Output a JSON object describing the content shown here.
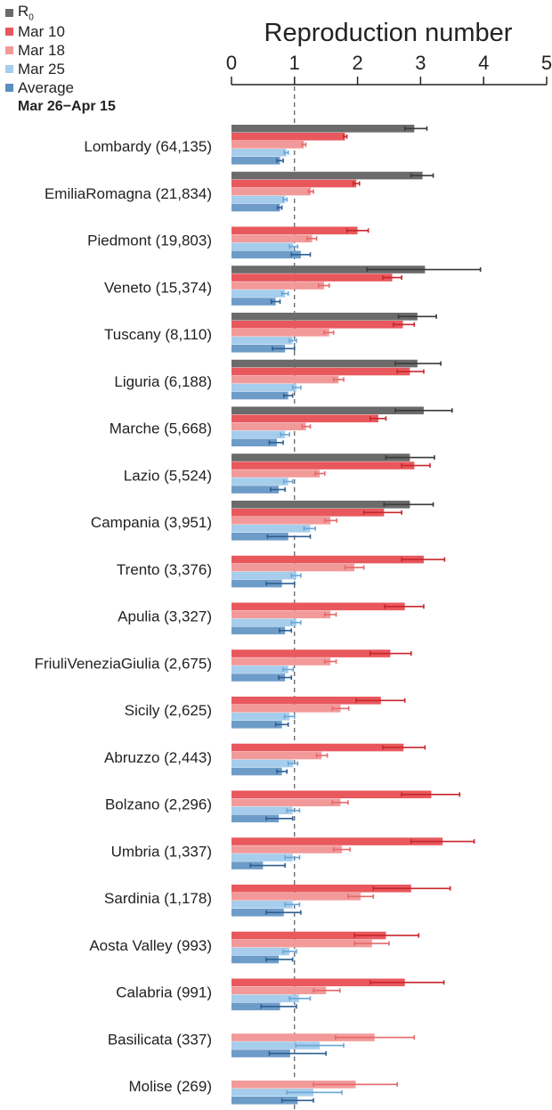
{
  "chart_data": {
    "type": "bar",
    "orientation": "horizontal",
    "xlabel": "Reproduction number",
    "xlim": [
      0,
      5
    ],
    "xticks": [
      "0",
      "1",
      "2",
      "3",
      "4",
      "5"
    ],
    "reference_line": 1,
    "legend": {
      "entries": [
        {
          "label": "R",
          "subscript": "0",
          "color": "#6b6b6b"
        },
        {
          "label": "Mar 10",
          "color": "#e8585d"
        },
        {
          "label": "Mar 18",
          "color": "#f29a9a"
        },
        {
          "label": "Mar 25",
          "color": "#a6cdec"
        },
        {
          "label": "Average",
          "color": "#5b8fbf"
        }
      ],
      "note": "Mar 26−Apr 15"
    },
    "series_colors": {
      "R0": "#6b6b6b",
      "Mar10": "#e8585d",
      "Mar18": "#f29a9a",
      "Mar25": "#a6cdec",
      "Average": "#6e9cc8"
    },
    "error_colors": {
      "R0": "#3a3a3a",
      "Mar10": "#c8262d",
      "Mar18": "#e56a6a",
      "Mar25": "#6aa6d6",
      "Average": "#2d5f93"
    },
    "categories": [
      {
        "label": "Lombardy (64,135)",
        "R0": [
          2.9,
          2.75,
          3.1
        ],
        "Mar10": [
          1.8,
          1.78,
          1.83
        ],
        "Mar18": [
          1.15,
          1.12,
          1.18
        ],
        "Mar25": [
          0.87,
          0.84,
          0.9
        ],
        "Average": [
          0.77,
          0.72,
          0.82
        ]
      },
      {
        "label": "EmiliaRomagna (21,834)",
        "R0": [
          3.03,
          2.85,
          3.2
        ],
        "Mar10": [
          1.98,
          1.93,
          2.03
        ],
        "Mar18": [
          1.26,
          1.22,
          1.3
        ],
        "Mar25": [
          0.85,
          0.82,
          0.88
        ],
        "Average": [
          0.77,
          0.73,
          0.8
        ]
      },
      {
        "label": "Piedmont (19,803)",
        "Mar10": [
          2.0,
          1.83,
          2.17
        ],
        "Mar18": [
          1.28,
          1.2,
          1.35
        ],
        "Mar25": [
          0.98,
          0.92,
          1.05
        ],
        "Average": [
          1.1,
          0.95,
          1.25
        ]
      },
      {
        "label": "Veneto (15,374)",
        "R0": [
          3.07,
          2.15,
          3.95
        ],
        "Mar10": [
          2.55,
          2.4,
          2.7
        ],
        "Mar18": [
          1.47,
          1.38,
          1.55
        ],
        "Mar25": [
          0.85,
          0.8,
          0.9
        ],
        "Average": [
          0.7,
          0.63,
          0.77
        ]
      },
      {
        "label": "Tuscany (8,110)",
        "R0": [
          2.95,
          2.65,
          3.25
        ],
        "Mar10": [
          2.72,
          2.57,
          2.9
        ],
        "Mar18": [
          1.55,
          1.47,
          1.62
        ],
        "Mar25": [
          0.97,
          0.92,
          1.03
        ],
        "Average": [
          0.85,
          0.65,
          1.0
        ]
      },
      {
        "label": "Liguria (6,188)",
        "R0": [
          2.95,
          2.6,
          3.32
        ],
        "Mar10": [
          2.83,
          2.63,
          3.05
        ],
        "Mar18": [
          1.7,
          1.62,
          1.78
        ],
        "Mar25": [
          1.03,
          0.97,
          1.1
        ],
        "Average": [
          0.9,
          0.83,
          0.97
        ]
      },
      {
        "label": "Marche (5,668)",
        "R0": [
          3.05,
          2.6,
          3.5
        ],
        "Mar10": [
          2.33,
          2.2,
          2.45
        ],
        "Mar18": [
          1.18,
          1.12,
          1.25
        ],
        "Mar25": [
          0.85,
          0.78,
          0.92
        ],
        "Average": [
          0.72,
          0.6,
          0.82
        ]
      },
      {
        "label": "Lazio (5,524)",
        "R0": [
          2.83,
          2.45,
          3.22
        ],
        "Mar10": [
          2.9,
          2.7,
          3.15
        ],
        "Mar18": [
          1.4,
          1.33,
          1.48
        ],
        "Mar25": [
          0.9,
          0.83,
          0.97
        ],
        "Average": [
          0.75,
          0.62,
          0.85
        ]
      },
      {
        "label": "Campania (3,951)",
        "R0": [
          2.83,
          2.42,
          3.2
        ],
        "Mar10": [
          2.42,
          2.1,
          2.7
        ],
        "Mar18": [
          1.57,
          1.48,
          1.67
        ],
        "Mar25": [
          1.25,
          1.15,
          1.33
        ],
        "Average": [
          0.9,
          0.57,
          1.25
        ]
      },
      {
        "label": "Trento (3,376)",
        "Mar10": [
          3.05,
          2.7,
          3.38
        ],
        "Mar18": [
          1.95,
          1.8,
          2.1
        ],
        "Mar25": [
          1.03,
          0.95,
          1.1
        ],
        "Average": [
          0.8,
          0.55,
          1.0
        ]
      },
      {
        "label": "Apulia (3,327)",
        "Mar10": [
          2.75,
          2.43,
          3.05
        ],
        "Mar18": [
          1.57,
          1.48,
          1.66
        ],
        "Mar25": [
          1.03,
          0.95,
          1.1
        ],
        "Average": [
          0.85,
          0.76,
          0.95
        ]
      },
      {
        "label": "FriuliVeneziaGiulia (2,675)",
        "Mar10": [
          2.52,
          2.2,
          2.85
        ],
        "Mar18": [
          1.57,
          1.48,
          1.66
        ],
        "Mar25": [
          0.9,
          0.82,
          0.98
        ],
        "Average": [
          0.85,
          0.75,
          0.95
        ]
      },
      {
        "label": "Sicily (2,625)",
        "Mar10": [
          2.37,
          1.98,
          2.75
        ],
        "Mar18": [
          1.73,
          1.6,
          1.86
        ],
        "Mar25": [
          0.92,
          0.84,
          1.0
        ],
        "Average": [
          0.8,
          0.7,
          0.9
        ]
      },
      {
        "label": "Abruzzo (2,443)",
        "Mar10": [
          2.73,
          2.4,
          3.07
        ],
        "Mar18": [
          1.43,
          1.35,
          1.52
        ],
        "Mar25": [
          0.98,
          0.9,
          1.05
        ],
        "Average": [
          0.8,
          0.72,
          0.88
        ]
      },
      {
        "label": "Bolzano (2,296)",
        "Mar10": [
          3.17,
          2.7,
          3.62
        ],
        "Mar18": [
          1.73,
          1.6,
          1.85
        ],
        "Mar25": [
          0.97,
          0.88,
          1.08
        ],
        "Average": [
          0.75,
          0.55,
          0.97
        ]
      },
      {
        "label": "Umbria (1,337)",
        "Mar10": [
          3.35,
          2.85,
          3.85
        ],
        "Mar18": [
          1.75,
          1.62,
          1.88
        ],
        "Mar25": [
          0.97,
          0.85,
          1.08
        ],
        "Average": [
          0.5,
          0.3,
          0.85
        ]
      },
      {
        "label": "Sardinia (1,178)",
        "Mar10": [
          2.85,
          2.25,
          3.47
        ],
        "Mar18": [
          2.05,
          1.85,
          2.25
        ],
        "Mar25": [
          0.97,
          0.85,
          1.08
        ],
        "Average": [
          0.83,
          0.55,
          1.1
        ]
      },
      {
        "label": "Aosta Valley (993)",
        "Mar10": [
          2.45,
          1.95,
          2.97
        ],
        "Mar18": [
          2.23,
          1.95,
          2.5
        ],
        "Mar25": [
          0.92,
          0.82,
          1.03
        ],
        "Average": [
          0.75,
          0.55,
          0.97
        ]
      },
      {
        "label": "Calabria (991)",
        "Mar10": [
          2.75,
          2.2,
          3.37
        ],
        "Mar18": [
          1.5,
          1.3,
          1.72
        ],
        "Mar25": [
          1.07,
          0.92,
          1.25
        ],
        "Average": [
          0.77,
          0.47,
          1.03
        ]
      },
      {
        "label": "Basilicata (337)",
        "Mar18": [
          2.27,
          1.65,
          2.9
        ],
        "Mar25": [
          1.4,
          1.02,
          1.78
        ],
        "Average": [
          0.93,
          0.6,
          1.5
        ]
      },
      {
        "label": "Molise (269)",
        "Mar18": [
          1.97,
          1.3,
          2.63
        ],
        "Mar25": [
          1.3,
          0.88,
          1.75
        ],
        "Average": [
          1.05,
          0.8,
          1.3
        ]
      }
    ]
  }
}
